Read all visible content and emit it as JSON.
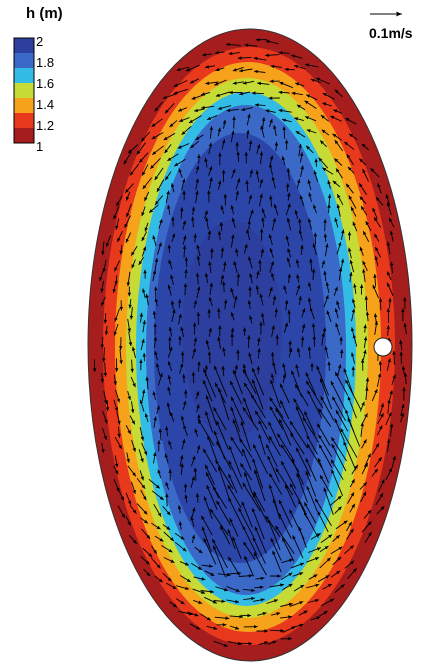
{
  "chart_data": {
    "type": "heatmap",
    "title": "",
    "colorbar": {
      "title": "h (m)",
      "tick_labels": [
        "2",
        "1.8",
        "1.6",
        "1.4",
        "1.2",
        "1"
      ],
      "range": [
        1,
        2
      ],
      "colors": [
        "#2c3e9e",
        "#3a69c8",
        "#33bde6",
        "#c6db35",
        "#f7a21b",
        "#e8391d",
        "#a51d1d"
      ]
    },
    "depth_levels": [
      {
        "h": 1.0,
        "color": "#a51d1d"
      },
      {
        "h": 1.1,
        "color": "#e8391d"
      },
      {
        "h": 1.3,
        "color": "#f7a21b"
      },
      {
        "h": 1.5,
        "color": "#c6db35"
      },
      {
        "h": 1.6,
        "color": "#33bde6"
      },
      {
        "h": 1.7,
        "color": "#3a69c8"
      },
      {
        "h": 1.85,
        "color": "#2c45a8"
      },
      {
        "h": 2.0,
        "color": "#2c3e9e"
      }
    ],
    "reference_vector": {
      "label": "0.1m/s",
      "speed": 0.1
    },
    "marker": "white circle on the right boundary",
    "vector_field": "velocity arrows; counter-clockwise circulation near boundary, northward flow in interior, stronger flow in lower-right"
  }
}
